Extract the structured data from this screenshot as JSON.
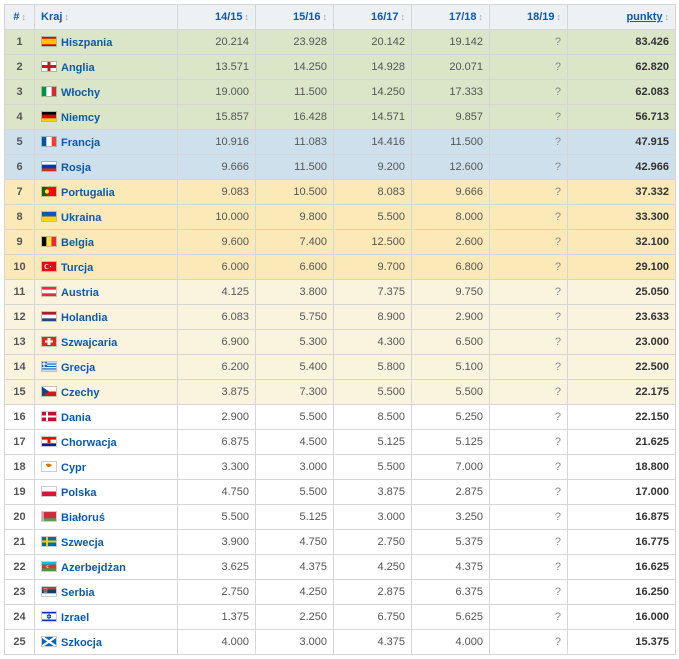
{
  "headers": {
    "rank": "#",
    "country": "Kraj",
    "seasons": [
      "14/15",
      "15/16",
      "16/17",
      "17/18",
      "18/19"
    ],
    "points": "punkty"
  },
  "unknown_marker": "?",
  "colors": {
    "header_bg": "#eef1f4",
    "link": "#0b5aad",
    "border": "#d6d6d6",
    "band_green": "#dbe5c8",
    "band_blue": "#cfe0ed",
    "band_yellow": "#fbe9b8",
    "band_cream": "#faf4df",
    "band_white": "#ffffff"
  },
  "rows": [
    {
      "rank": 1,
      "band": "g",
      "country": "Hiszpania",
      "flag": "es",
      "s": [
        "20.214",
        "23.928",
        "20.142",
        "19.142",
        "?"
      ],
      "pts": "83.426"
    },
    {
      "rank": 2,
      "band": "g",
      "country": "Anglia",
      "flag": "en",
      "s": [
        "13.571",
        "14.250",
        "14.928",
        "20.071",
        "?"
      ],
      "pts": "62.820"
    },
    {
      "rank": 3,
      "band": "g",
      "country": "Włochy",
      "flag": "it",
      "s": [
        "19.000",
        "11.500",
        "14.250",
        "17.333",
        "?"
      ],
      "pts": "62.083"
    },
    {
      "rank": 4,
      "band": "g",
      "country": "Niemcy",
      "flag": "de",
      "s": [
        "15.857",
        "16.428",
        "14.571",
        "9.857",
        "?"
      ],
      "pts": "56.713"
    },
    {
      "rank": 5,
      "band": "b",
      "country": "Francja",
      "flag": "fr",
      "s": [
        "10.916",
        "11.083",
        "14.416",
        "11.500",
        "?"
      ],
      "pts": "47.915"
    },
    {
      "rank": 6,
      "band": "b",
      "country": "Rosja",
      "flag": "ru",
      "s": [
        "9.666",
        "11.500",
        "9.200",
        "12.600",
        "?"
      ],
      "pts": "42.966"
    },
    {
      "rank": 7,
      "band": "y",
      "country": "Portugalia",
      "flag": "pt",
      "s": [
        "9.083",
        "10.500",
        "8.083",
        "9.666",
        "?"
      ],
      "pts": "37.332"
    },
    {
      "rank": 8,
      "band": "y",
      "country": "Ukraina",
      "flag": "ua",
      "s": [
        "10.000",
        "9.800",
        "5.500",
        "8.000",
        "?"
      ],
      "pts": "33.300"
    },
    {
      "rank": 9,
      "band": "y",
      "country": "Belgia",
      "flag": "be",
      "s": [
        "9.600",
        "7.400",
        "12.500",
        "2.600",
        "?"
      ],
      "pts": "32.100"
    },
    {
      "rank": 10,
      "band": "y",
      "country": "Turcja",
      "flag": "tr",
      "s": [
        "6.000",
        "6.600",
        "9.700",
        "6.800",
        "?"
      ],
      "pts": "29.100"
    },
    {
      "rank": 11,
      "band": "c",
      "country": "Austria",
      "flag": "at",
      "s": [
        "4.125",
        "3.800",
        "7.375",
        "9.750",
        "?"
      ],
      "pts": "25.050"
    },
    {
      "rank": 12,
      "band": "c",
      "country": "Holandia",
      "flag": "nl",
      "s": [
        "6.083",
        "5.750",
        "8.900",
        "2.900",
        "?"
      ],
      "pts": "23.633"
    },
    {
      "rank": 13,
      "band": "c",
      "country": "Szwajcaria",
      "flag": "ch",
      "s": [
        "6.900",
        "5.300",
        "4.300",
        "6.500",
        "?"
      ],
      "pts": "23.000"
    },
    {
      "rank": 14,
      "band": "c",
      "country": "Grecja",
      "flag": "gr",
      "s": [
        "6.200",
        "5.400",
        "5.800",
        "5.100",
        "?"
      ],
      "pts": "22.500"
    },
    {
      "rank": 15,
      "band": "c",
      "country": "Czechy",
      "flag": "cz",
      "s": [
        "3.875",
        "7.300",
        "5.500",
        "5.500",
        "?"
      ],
      "pts": "22.175"
    },
    {
      "rank": 16,
      "band": "w",
      "country": "Dania",
      "flag": "dk",
      "s": [
        "2.900",
        "5.500",
        "8.500",
        "5.250",
        "?"
      ],
      "pts": "22.150"
    },
    {
      "rank": 17,
      "band": "w",
      "country": "Chorwacja",
      "flag": "hr",
      "s": [
        "6.875",
        "4.500",
        "5.125",
        "5.125",
        "?"
      ],
      "pts": "21.625"
    },
    {
      "rank": 18,
      "band": "w",
      "country": "Cypr",
      "flag": "cy",
      "s": [
        "3.300",
        "3.000",
        "5.500",
        "7.000",
        "?"
      ],
      "pts": "18.800"
    },
    {
      "rank": 19,
      "band": "w",
      "country": "Polska",
      "flag": "pl",
      "s": [
        "4.750",
        "5.500",
        "3.875",
        "2.875",
        "?"
      ],
      "pts": "17.000"
    },
    {
      "rank": 20,
      "band": "w",
      "country": "Białoruś",
      "flag": "by",
      "s": [
        "5.500",
        "5.125",
        "3.000",
        "3.250",
        "?"
      ],
      "pts": "16.875"
    },
    {
      "rank": 21,
      "band": "w",
      "country": "Szwecja",
      "flag": "se",
      "s": [
        "3.900",
        "4.750",
        "2.750",
        "5.375",
        "?"
      ],
      "pts": "16.775"
    },
    {
      "rank": 22,
      "band": "w",
      "country": "Azerbejdżan",
      "flag": "az",
      "s": [
        "3.625",
        "4.375",
        "4.250",
        "4.375",
        "?"
      ],
      "pts": "16.625"
    },
    {
      "rank": 23,
      "band": "w",
      "country": "Serbia",
      "flag": "rs",
      "s": [
        "2.750",
        "4.250",
        "2.875",
        "6.375",
        "?"
      ],
      "pts": "16.250"
    },
    {
      "rank": 24,
      "band": "w",
      "country": "Izrael",
      "flag": "il",
      "s": [
        "1.375",
        "2.250",
        "6.750",
        "5.625",
        "?"
      ],
      "pts": "16.000"
    },
    {
      "rank": 25,
      "band": "w",
      "country": "Szkocja",
      "flag": "sc",
      "s": [
        "4.000",
        "3.000",
        "4.375",
        "4.000",
        "?"
      ],
      "pts": "15.375"
    }
  ],
  "flags": {
    "es": "<rect width='16' height='11' fill='#c60b1e'/><rect y='2.75' width='16' height='5.5' fill='#ffc400'/>",
    "en": "<rect width='16' height='11' fill='#fff'/><rect x='6.5' width='3' height='11' fill='#ce1124'/><rect y='4' width='16' height='3' fill='#ce1124'/>",
    "it": "<rect width='16' height='11' fill='#fff'/><rect width='5.33' height='11' fill='#009246'/><rect x='10.66' width='5.34' height='11' fill='#ce2b37'/>",
    "de": "<rect width='16' height='11' fill='#ffce00'/><rect width='16' height='7.33' fill='#dd0000'/><rect width='16' height='3.66' fill='#000'/>",
    "fr": "<rect width='16' height='11' fill='#fff'/><rect width='5.33' height='11' fill='#0055a4'/><rect x='10.66' width='5.34' height='11' fill='#ef4135'/>",
    "ru": "<rect width='16' height='11' fill='#d52b1e'/><rect width='16' height='7.33' fill='#0039a6'/><rect width='16' height='3.66' fill='#fff'/>",
    "pt": "<rect width='16' height='11' fill='#f00'/><rect width='6' height='11' fill='#060'/><circle cx='6' cy='5.5' r='2.3' fill='#ff0' stroke='#f00' stroke-width='0.5'/>",
    "ua": "<rect width='16' height='11' fill='#ffd500'/><rect width='16' height='5.5' fill='#005bbb'/>",
    "be": "<rect width='16' height='11' fill='#000'/><rect x='5.33' width='5.33' height='11' fill='#fae042'/><rect x='10.66' width='5.34' height='11' fill='#ed2939'/>",
    "tr": "<rect width='16' height='11' fill='#e30a17'/><circle cx='6' cy='5.5' r='2.6' fill='#fff'/><circle cx='6.6' cy='5.5' r='2.1' fill='#e30a17'/><polygon points='8.5,5.5 10.5,6.2 9.2,4.5 9.2,6.5 10.5,4.8' fill='#fff'/>",
    "at": "<rect width='16' height='11' fill='#ed2939'/><rect y='3.66' width='16' height='3.66' fill='#fff'/>",
    "nl": "<rect width='16' height='11' fill='#21468b'/><rect width='16' height='7.33' fill='#fff'/><rect width='16' height='3.66' fill='#ae1c28'/>",
    "ch": "<rect width='16' height='11' fill='#d52b1e'/><rect x='6.5' y='2' width='3' height='7' fill='#fff'/><rect x='4' y='4.5' width='8' height='2' fill='#fff'/>",
    "gr": "<rect width='16' height='11' fill='#0d5eaf'/><rect y='1.22' width='16' height='1.22' fill='#fff'/><rect y='3.66' width='16' height='1.22' fill='#fff'/><rect y='6.1' width='16' height='1.22' fill='#fff'/><rect y='8.55' width='16' height='1.22' fill='#fff'/><rect width='6' height='6.1' fill='#0d5eaf'/><rect x='2.4' width='1.2' height='6.1' fill='#fff'/><rect y='2.4' width='6' height='1.2' fill='#fff'/>",
    "cz": "<rect width='16' height='11' fill='#d7141a'/><rect width='16' height='5.5' fill='#fff'/><polygon points='0,0 8,5.5 0,11' fill='#11457e'/>",
    "dk": "<rect width='16' height='11' fill='#c60c30'/><rect x='5' width='2' height='11' fill='#fff'/><rect y='4.5' width='16' height='2' fill='#fff'/>",
    "hr": "<rect width='16' height='11' fill='#171796'/><rect width='16' height='7.33' fill='#fff'/><rect width='16' height='3.66' fill='#ff0000'/><rect x='6.5' y='3.5' width='3' height='3.5' fill='#ff0000'/>",
    "cy": "<rect width='16' height='11' fill='#fff'/><path d='M5 3 Q9 2 11 4 Q10 6 7 6 Q5 5 5 3' fill='#d57800'/>",
    "pl": "<rect width='16' height='11' fill='#dc143c'/><rect width='16' height='5.5' fill='#fff'/>",
    "by": "<rect width='16' height='11' fill='#4aa657'/><rect width='16' height='7.33' fill='#c8313e'/><rect width='2.5' height='11' fill='#fff'/><rect x='0.5' width='0.5' height='11' fill='#c8313e'/><rect x='1.5' width='0.5' height='11' fill='#c8313e'/>",
    "se": "<rect width='16' height='11' fill='#006aa7'/><rect x='5' width='2' height='11' fill='#fecc00'/><rect y='4.5' width='16' height='2' fill='#fecc00'/>",
    "az": "<rect width='16' height='11' fill='#3f9c35'/><rect width='16' height='7.33' fill='#ed2939'/><rect width='16' height='3.66' fill='#00b9e4'/><circle cx='7' cy='5.5' r='1.5' fill='#fff'/><circle cx='7.5' cy='5.5' r='1.2' fill='#ed2939'/>",
    "rs": "<rect width='16' height='11' fill='#fff'/><rect width='16' height='7.33' fill='#0c4076'/><rect width='16' height='3.66' fill='#c6363c'/><rect x='3' y='2.5' width='3' height='4' fill='#c6363c' stroke='#fff' stroke-width='0.3'/>",
    "il": "<rect width='16' height='11' fill='#fff'/><rect y='1' width='16' height='1.5' fill='#0038b8'/><rect y='8.5' width='16' height='1.5' fill='#0038b8'/><polygon points='8,3.2 6.2,6.8 9.8,6.8' fill='none' stroke='#0038b8' stroke-width='0.7'/><polygon points='8,7.8 6.2,4.2 9.8,4.2' fill='none' stroke='#0038b8' stroke-width='0.7'/>",
    "sc": "<rect width='16' height='11' fill='#0065bd'/><line x1='0' y1='0' x2='16' y2='11' stroke='#fff' stroke-width='2.2'/><line x1='16' y1='0' x2='0' y2='11' stroke='#fff' stroke-width='2.2'/>"
  }
}
